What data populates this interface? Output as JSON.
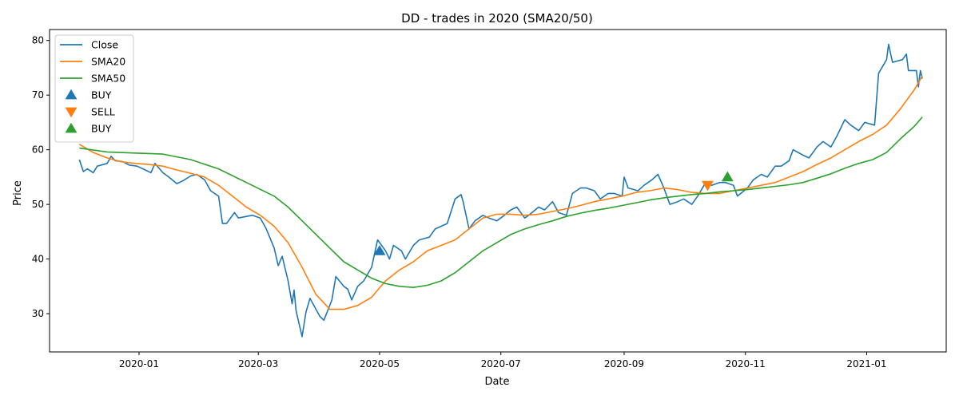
{
  "chart_data": {
    "type": "line",
    "title": "DD - trades in 2020 (SMA20/50)",
    "xlabel": "Date",
    "ylabel": "Price",
    "xlim": [
      "2019-11-17",
      "2021-02-10"
    ],
    "ylim": [
      23.0,
      82.0
    ],
    "x_ticks": [
      "2020-01-01",
      "2020-03-01",
      "2020-05-01",
      "2020-07-01",
      "2020-09-01",
      "2020-11-01",
      "2021-01-01"
    ],
    "x_tick_labels": [
      "2020-01",
      "2020-03",
      "2020-05",
      "2020-07",
      "2020-09",
      "2020-11",
      "2021-01"
    ],
    "y_ticks": [
      30,
      40,
      50,
      60,
      70,
      80
    ],
    "grid": false,
    "legend_position": "top-left",
    "series": [
      {
        "name": "Close",
        "color": "#1f77b4",
        "points": [
          [
            "2019-12-02",
            58.2
          ],
          [
            "2019-12-04",
            56.0
          ],
          [
            "2019-12-06",
            56.5
          ],
          [
            "2019-12-09",
            55.8
          ],
          [
            "2019-12-11",
            57.0
          ],
          [
            "2019-12-16",
            57.5
          ],
          [
            "2019-12-18",
            58.8
          ],
          [
            "2019-12-20",
            58.0
          ],
          [
            "2019-12-24",
            57.8
          ],
          [
            "2019-12-27",
            57.2
          ],
          [
            "2019-12-31",
            57.0
          ],
          [
            "2020-01-03",
            56.5
          ],
          [
            "2020-01-07",
            55.8
          ],
          [
            "2020-01-09",
            57.5
          ],
          [
            "2020-01-13",
            55.8
          ],
          [
            "2020-01-16",
            55.0
          ],
          [
            "2020-01-20",
            53.8
          ],
          [
            "2020-01-23",
            54.3
          ],
          [
            "2020-01-27",
            55.2
          ],
          [
            "2020-01-30",
            55.5
          ],
          [
            "2020-02-03",
            54.5
          ],
          [
            "2020-02-06",
            52.5
          ],
          [
            "2020-02-10",
            51.5
          ],
          [
            "2020-02-12",
            46.5
          ],
          [
            "2020-02-14",
            46.5
          ],
          [
            "2020-02-18",
            48.5
          ],
          [
            "2020-02-20",
            47.5
          ],
          [
            "2020-02-24",
            47.8
          ],
          [
            "2020-02-27",
            48.0
          ],
          [
            "2020-03-02",
            47.5
          ],
          [
            "2020-03-05",
            45.5
          ],
          [
            "2020-03-09",
            42.0
          ],
          [
            "2020-03-11",
            38.8
          ],
          [
            "2020-03-13",
            40.5
          ],
          [
            "2020-03-16",
            36.0
          ],
          [
            "2020-03-18",
            31.8
          ],
          [
            "2020-03-19",
            34.3
          ],
          [
            "2020-03-20",
            30.5
          ],
          [
            "2020-03-23",
            25.8
          ],
          [
            "2020-03-25",
            30.3
          ],
          [
            "2020-03-27",
            32.8
          ],
          [
            "2020-03-30",
            30.8
          ],
          [
            "2020-04-01",
            29.5
          ],
          [
            "2020-04-03",
            28.8
          ],
          [
            "2020-04-07",
            32.5
          ],
          [
            "2020-04-09",
            36.8
          ],
          [
            "2020-04-13",
            35.0
          ],
          [
            "2020-04-15",
            34.5
          ],
          [
            "2020-04-17",
            32.5
          ],
          [
            "2020-04-20",
            35.0
          ],
          [
            "2020-04-23",
            36.0
          ],
          [
            "2020-04-27",
            38.5
          ],
          [
            "2020-04-30",
            43.5
          ],
          [
            "2020-05-04",
            41.5
          ],
          [
            "2020-05-06",
            40.0
          ],
          [
            "2020-05-08",
            42.5
          ],
          [
            "2020-05-12",
            41.5
          ],
          [
            "2020-05-14",
            40.0
          ],
          [
            "2020-05-18",
            42.5
          ],
          [
            "2020-05-21",
            43.5
          ],
          [
            "2020-05-26",
            44.0
          ],
          [
            "2020-05-29",
            45.5
          ],
          [
            "2020-06-01",
            46.0
          ],
          [
            "2020-06-04",
            46.5
          ],
          [
            "2020-06-08",
            51.0
          ],
          [
            "2020-06-11",
            51.8
          ],
          [
            "2020-06-12",
            50.5
          ],
          [
            "2020-06-15",
            45.5
          ],
          [
            "2020-06-18",
            47.0
          ],
          [
            "2020-06-22",
            48.0
          ],
          [
            "2020-06-25",
            47.5
          ],
          [
            "2020-06-29",
            47.0
          ],
          [
            "2020-07-02",
            47.8
          ],
          [
            "2020-07-06",
            49.0
          ],
          [
            "2020-07-09",
            49.5
          ],
          [
            "2020-07-13",
            47.5
          ],
          [
            "2020-07-15",
            48.0
          ],
          [
            "2020-07-20",
            49.5
          ],
          [
            "2020-07-23",
            49.0
          ],
          [
            "2020-07-27",
            50.5
          ],
          [
            "2020-07-30",
            48.5
          ],
          [
            "2020-08-03",
            48.0
          ],
          [
            "2020-08-06",
            52.0
          ],
          [
            "2020-08-10",
            53.0
          ],
          [
            "2020-08-13",
            53.0
          ],
          [
            "2020-08-17",
            52.5
          ],
          [
            "2020-08-20",
            51.0
          ],
          [
            "2020-08-24",
            52.0
          ],
          [
            "2020-08-27",
            52.0
          ],
          [
            "2020-08-31",
            51.5
          ],
          [
            "2020-09-01",
            55.0
          ],
          [
            "2020-09-03",
            53.0
          ],
          [
            "2020-09-08",
            52.5
          ],
          [
            "2020-09-11",
            53.5
          ],
          [
            "2020-09-15",
            54.5
          ],
          [
            "2020-09-18",
            55.5
          ],
          [
            "2020-09-21",
            53.0
          ],
          [
            "2020-09-24",
            50.0
          ],
          [
            "2020-09-28",
            50.5
          ],
          [
            "2020-10-01",
            51.0
          ],
          [
            "2020-10-05",
            50.0
          ],
          [
            "2020-10-08",
            51.5
          ],
          [
            "2020-10-12",
            54.0
          ],
          [
            "2020-10-15",
            53.5
          ],
          [
            "2020-10-19",
            54.0
          ],
          [
            "2020-10-22",
            54.0
          ],
          [
            "2020-10-26",
            53.5
          ],
          [
            "2020-10-28",
            51.5
          ],
          [
            "2020-11-02",
            53.0
          ],
          [
            "2020-11-05",
            54.5
          ],
          [
            "2020-11-09",
            55.5
          ],
          [
            "2020-11-12",
            55.0
          ],
          [
            "2020-11-16",
            57.0
          ],
          [
            "2020-11-19",
            57.0
          ],
          [
            "2020-11-23",
            58.0
          ],
          [
            "2020-11-25",
            60.0
          ],
          [
            "2020-11-30",
            59.0
          ],
          [
            "2020-12-03",
            58.5
          ],
          [
            "2020-12-07",
            60.5
          ],
          [
            "2020-12-10",
            61.5
          ],
          [
            "2020-12-14",
            60.5
          ],
          [
            "2020-12-17",
            62.5
          ],
          [
            "2020-12-21",
            65.5
          ],
          [
            "2020-12-24",
            64.5
          ],
          [
            "2020-12-28",
            63.5
          ],
          [
            "2020-12-31",
            65.0
          ],
          [
            "2021-01-05",
            64.5
          ],
          [
            "2021-01-07",
            74.0
          ],
          [
            "2021-01-11",
            76.5
          ],
          [
            "2021-01-12",
            79.3
          ],
          [
            "2021-01-14",
            76.0
          ],
          [
            "2021-01-19",
            76.5
          ],
          [
            "2021-01-21",
            77.5
          ],
          [
            "2021-01-22",
            74.5
          ],
          [
            "2021-01-26",
            74.5
          ],
          [
            "2021-01-27",
            71.5
          ],
          [
            "2021-01-28",
            74.5
          ],
          [
            "2021-01-29",
            73.0
          ]
        ]
      },
      {
        "name": "SMA20",
        "color": "#ff7f0e",
        "points": [
          [
            "2019-12-02",
            61.0
          ],
          [
            "2019-12-09",
            59.5
          ],
          [
            "2019-12-16",
            58.5
          ],
          [
            "2019-12-23",
            57.8
          ],
          [
            "2019-12-30",
            57.5
          ],
          [
            "2020-01-06",
            57.3
          ],
          [
            "2020-01-13",
            57.0
          ],
          [
            "2020-01-20",
            56.3
          ],
          [
            "2020-01-27",
            55.7
          ],
          [
            "2020-02-03",
            55.0
          ],
          [
            "2020-02-10",
            53.5
          ],
          [
            "2020-02-17",
            51.5
          ],
          [
            "2020-02-24",
            49.5
          ],
          [
            "2020-03-02",
            48.0
          ],
          [
            "2020-03-09",
            46.0
          ],
          [
            "2020-03-16",
            43.0
          ],
          [
            "2020-03-23",
            38.5
          ],
          [
            "2020-03-30",
            33.5
          ],
          [
            "2020-04-06",
            30.8
          ],
          [
            "2020-04-13",
            30.8
          ],
          [
            "2020-04-20",
            31.5
          ],
          [
            "2020-04-27",
            33.0
          ],
          [
            "2020-05-04",
            36.0
          ],
          [
            "2020-05-11",
            38.0
          ],
          [
            "2020-05-18",
            39.5
          ],
          [
            "2020-05-25",
            41.5
          ],
          [
            "2020-06-01",
            42.5
          ],
          [
            "2020-06-08",
            43.5
          ],
          [
            "2020-06-15",
            45.5
          ],
          [
            "2020-06-22",
            47.5
          ],
          [
            "2020-06-29",
            48.2
          ],
          [
            "2020-07-06",
            48.2
          ],
          [
            "2020-07-13",
            48.0
          ],
          [
            "2020-07-20",
            48.2
          ],
          [
            "2020-07-27",
            48.7
          ],
          [
            "2020-08-03",
            49.2
          ],
          [
            "2020-08-10",
            49.8
          ],
          [
            "2020-08-17",
            50.5
          ],
          [
            "2020-08-24",
            51.0
          ],
          [
            "2020-08-31",
            51.5
          ],
          [
            "2020-09-07",
            52.2
          ],
          [
            "2020-09-14",
            52.5
          ],
          [
            "2020-09-21",
            53.0
          ],
          [
            "2020-09-28",
            52.7
          ],
          [
            "2020-10-05",
            52.2
          ],
          [
            "2020-10-12",
            52.0
          ],
          [
            "2020-10-19",
            52.0
          ],
          [
            "2020-10-26",
            52.5
          ],
          [
            "2020-11-02",
            53.0
          ],
          [
            "2020-11-09",
            53.5
          ],
          [
            "2020-11-16",
            54.0
          ],
          [
            "2020-11-23",
            55.0
          ],
          [
            "2020-11-30",
            56.0
          ],
          [
            "2020-12-07",
            57.3
          ],
          [
            "2020-12-14",
            58.5
          ],
          [
            "2020-12-21",
            60.0
          ],
          [
            "2020-12-28",
            61.5
          ],
          [
            "2021-01-04",
            62.8
          ],
          [
            "2021-01-11",
            64.5
          ],
          [
            "2021-01-18",
            67.5
          ],
          [
            "2021-01-25",
            71.0
          ],
          [
            "2021-01-29",
            73.5
          ]
        ]
      },
      {
        "name": "SMA50",
        "color": "#2ca02c",
        "points": [
          [
            "2019-12-02",
            60.3
          ],
          [
            "2019-12-16",
            59.6
          ],
          [
            "2019-12-30",
            59.4
          ],
          [
            "2020-01-13",
            59.2
          ],
          [
            "2020-01-27",
            58.2
          ],
          [
            "2020-02-10",
            56.5
          ],
          [
            "2020-02-24",
            54.0
          ],
          [
            "2020-03-09",
            51.5
          ],
          [
            "2020-03-16",
            49.5
          ],
          [
            "2020-03-23",
            47.0
          ],
          [
            "2020-03-30",
            44.5
          ],
          [
            "2020-04-06",
            42.0
          ],
          [
            "2020-04-13",
            39.5
          ],
          [
            "2020-04-20",
            38.0
          ],
          [
            "2020-04-27",
            36.5
          ],
          [
            "2020-05-04",
            35.5
          ],
          [
            "2020-05-11",
            35.0
          ],
          [
            "2020-05-18",
            34.8
          ],
          [
            "2020-05-25",
            35.2
          ],
          [
            "2020-06-01",
            36.0
          ],
          [
            "2020-06-08",
            37.5
          ],
          [
            "2020-06-15",
            39.5
          ],
          [
            "2020-06-22",
            41.5
          ],
          [
            "2020-06-29",
            43.0
          ],
          [
            "2020-07-06",
            44.5
          ],
          [
            "2020-07-13",
            45.5
          ],
          [
            "2020-07-20",
            46.3
          ],
          [
            "2020-07-27",
            47.0
          ],
          [
            "2020-08-03",
            47.8
          ],
          [
            "2020-08-10",
            48.4
          ],
          [
            "2020-08-17",
            48.9
          ],
          [
            "2020-08-24",
            49.3
          ],
          [
            "2020-08-31",
            49.8
          ],
          [
            "2020-09-07",
            50.3
          ],
          [
            "2020-09-14",
            50.8
          ],
          [
            "2020-09-21",
            51.2
          ],
          [
            "2020-09-28",
            51.5
          ],
          [
            "2020-10-05",
            51.8
          ],
          [
            "2020-10-12",
            52.0
          ],
          [
            "2020-10-19",
            52.3
          ],
          [
            "2020-10-26",
            52.5
          ],
          [
            "2020-11-02",
            52.7
          ],
          [
            "2020-11-09",
            53.0
          ],
          [
            "2020-11-16",
            53.3
          ],
          [
            "2020-11-23",
            53.6
          ],
          [
            "2020-11-30",
            54.0
          ],
          [
            "2020-12-07",
            54.8
          ],
          [
            "2020-12-14",
            55.6
          ],
          [
            "2020-12-21",
            56.6
          ],
          [
            "2020-12-28",
            57.5
          ],
          [
            "2021-01-04",
            58.2
          ],
          [
            "2021-01-11",
            59.5
          ],
          [
            "2021-01-18",
            62.0
          ],
          [
            "2021-01-25",
            64.3
          ],
          [
            "2021-01-29",
            66.0
          ]
        ]
      }
    ],
    "markers": [
      {
        "name": "BUY",
        "shape": "triangle-up",
        "color": "#1f77b4",
        "points": [
          [
            "2020-05-01",
            41.5
          ]
        ]
      },
      {
        "name": "SELL",
        "shape": "triangle-down",
        "color": "#ff7f0e",
        "points": [
          [
            "2020-10-13",
            53.5
          ]
        ]
      },
      {
        "name": "BUY",
        "shape": "triangle-up",
        "color": "#2ca02c",
        "points": [
          [
            "2020-10-23",
            55.0
          ]
        ]
      }
    ]
  }
}
